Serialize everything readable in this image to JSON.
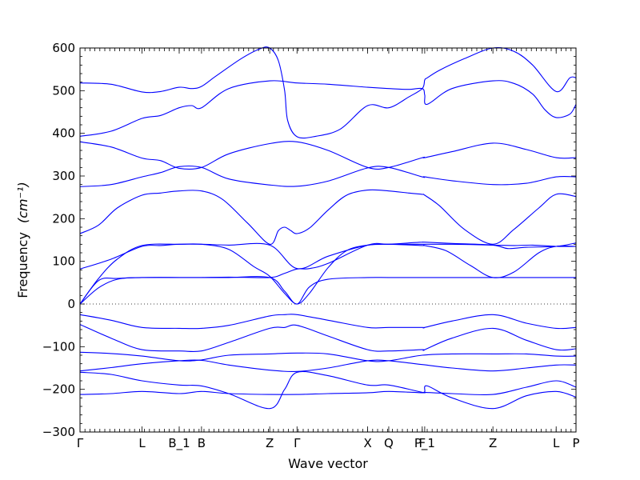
{
  "chart_data": {
    "type": "line",
    "title": "",
    "xlabel": "Wave vector",
    "ylabel": "Frequency",
    "ylabel_unit": "(cm⁻¹)",
    "ylim": [
      -300,
      600
    ],
    "yticks": [
      -300,
      -200,
      -100,
      0,
      100,
      200,
      300,
      400,
      500,
      600
    ],
    "xlim": [
      0,
      8.0
    ],
    "grid": false,
    "legend": "none",
    "colors": {
      "bands": "#0000ff",
      "zero_line": "#000000"
    },
    "high_symmetry_points": [
      {
        "label": "Γ",
        "x": 0.0
      },
      {
        "label": "L",
        "x": 1.0
      },
      {
        "label": "B_1",
        "x": 1.6
      },
      {
        "label": "B",
        "x": 1.96
      },
      {
        "label": "Z",
        "x": 3.06
      },
      {
        "label": "Γ",
        "x": 3.5
      },
      {
        "label": "X",
        "x": 4.64
      },
      {
        "label": "Q",
        "x": 4.98
      },
      {
        "label": "F",
        "x": 5.52
      },
      {
        "label": "P_1",
        "x": 5.56
      },
      {
        "label": "Z",
        "x": 6.66
      },
      {
        "label": "L",
        "x": 7.68
      },
      {
        "label": "P",
        "x": 8.0
      }
    ],
    "series": [
      {
        "x": [
          0,
          0.5,
          1.0,
          1.3,
          1.6,
          1.8,
          1.96,
          2.2,
          2.6,
          2.9,
          3.06,
          3.2,
          3.3,
          3.35,
          3.5,
          3.8,
          4.2,
          4.64,
          4.98,
          5.3,
          5.52,
          5.56,
          5.6,
          5.8,
          6.2,
          6.66,
          7.0,
          7.3,
          7.68,
          7.9,
          8.0
        ],
        "y": [
          518,
          515,
          497,
          498,
          508,
          505,
          510,
          535,
          575,
          598,
          600,
          570,
          500,
          430,
          392,
          393,
          410,
          465,
          460,
          485,
          505,
          525,
          530,
          548,
          575,
          600,
          592,
          560,
          498,
          530,
          530
        ]
      },
      {
        "x": [
          0,
          0.5,
          1.0,
          1.3,
          1.6,
          1.8,
          1.96,
          2.4,
          3.06,
          3.5,
          4.0,
          4.64,
          4.98,
          5.3,
          5.52,
          5.56,
          5.6,
          6.0,
          6.66,
          7.0,
          7.3,
          7.5,
          7.68,
          7.9,
          8.0
        ],
        "y": [
          393,
          405,
          435,
          442,
          460,
          465,
          460,
          505,
          523,
          518,
          515,
          508,
          505,
          503,
          505,
          490,
          468,
          505,
          523,
          517,
          492,
          455,
          437,
          445,
          468
        ]
      },
      {
        "x": [
          0,
          0.5,
          1.0,
          1.3,
          1.6,
          1.96,
          2.4,
          3.06,
          3.5,
          4.0,
          4.64,
          4.98,
          5.52,
          5.56,
          6.0,
          6.66,
          7.2,
          7.68,
          8.0
        ],
        "y": [
          380,
          368,
          342,
          336,
          318,
          320,
          352,
          376,
          380,
          360,
          320,
          320,
          343,
          343,
          357,
          377,
          362,
          343,
          343
        ]
      },
      {
        "x": [
          0,
          0.5,
          1.0,
          1.3,
          1.6,
          1.96,
          2.4,
          3.06,
          3.5,
          4.0,
          4.64,
          4.98,
          5.52,
          5.56,
          6.0,
          6.66,
          7.2,
          7.68,
          8.0
        ],
        "y": [
          275,
          280,
          298,
          308,
          322,
          320,
          293,
          279,
          276,
          288,
          319,
          320,
          298,
          298,
          289,
          280,
          283,
          298,
          298
        ]
      },
      {
        "x": [
          0,
          0.3,
          0.6,
          1.0,
          1.3,
          1.6,
          1.96,
          2.3,
          2.7,
          3.06,
          3.2,
          3.3,
          3.4,
          3.5,
          3.7,
          4.0,
          4.3,
          4.64,
          4.98,
          5.3,
          5.52,
          5.56,
          5.8,
          6.2,
          6.66,
          7.0,
          7.4,
          7.68,
          8.0
        ],
        "y": [
          165,
          185,
          225,
          255,
          260,
          265,
          265,
          245,
          190,
          140,
          172,
          180,
          172,
          165,
          178,
          220,
          255,
          267,
          265,
          260,
          257,
          255,
          230,
          175,
          140,
          175,
          225,
          257,
          252
        ]
      },
      {
        "x": [
          0,
          0.5,
          1.0,
          1.3,
          1.6,
          1.96,
          2.4,
          3.06,
          3.5,
          4.0,
          4.64,
          4.98,
          5.3,
          5.52,
          5.56,
          6.0,
          6.66,
          6.9,
          7.2,
          7.68,
          8.0
        ],
        "y": [
          82,
          105,
          135,
          137,
          140,
          140,
          138,
          138,
          83,
          112,
          138,
          140,
          143,
          145,
          145,
          142,
          138,
          130,
          133,
          135,
          143
        ]
      },
      {
        "x": [
          0,
          0.3,
          0.6,
          1.0,
          1.6,
          1.96,
          2.4,
          2.8,
          3.06,
          3.3,
          3.5,
          3.7,
          4.0,
          4.3,
          4.64,
          4.98,
          5.52,
          5.56,
          5.9,
          6.3,
          6.66,
          7.0,
          7.4,
          7.68,
          8.0
        ],
        "y": [
          0,
          60,
          105,
          137,
          140,
          140,
          128,
          88,
          65,
          25,
          0,
          25,
          85,
          125,
          138,
          140,
          137,
          137,
          125,
          90,
          62,
          75,
          120,
          135,
          135
        ]
      },
      {
        "x": [
          0,
          0.3,
          0.6,
          1.0,
          1.6,
          1.96,
          2.4,
          3.06,
          3.3,
          3.5,
          3.7,
          4.0,
          4.64,
          4.98,
          5.52,
          6.0,
          6.66,
          7.2,
          7.68,
          8.0
        ],
        "y": [
          0,
          55,
          60,
          62,
          62,
          62,
          62,
          62,
          30,
          0,
          40,
          58,
          62,
          62,
          62,
          62,
          62,
          62,
          62,
          62
        ]
      },
      {
        "x": [
          0,
          0.3,
          0.6,
          1.0,
          1.6,
          1.96,
          2.4,
          3.06,
          3.3,
          3.5,
          3.7,
          4.0,
          4.64,
          4.98,
          5.52,
          6.0,
          6.66,
          7.0,
          7.3,
          7.68,
          8.0
        ],
        "y": [
          0,
          38,
          58,
          62,
          62,
          62,
          63,
          62,
          72,
          82,
          83,
          95,
          138,
          140,
          140,
          140,
          138,
          137,
          138,
          135,
          135
        ]
      },
      {
        "x": [
          0,
          0.5,
          1.0,
          1.6,
          1.96,
          2.4,
          3.06,
          3.3,
          3.5,
          4.0,
          4.64,
          4.98,
          5.52,
          5.56,
          6.0,
          6.66,
          7.2,
          7.68,
          8.0
        ],
        "y": [
          -25,
          -38,
          -55,
          -57,
          -57,
          -50,
          -28,
          -25,
          -25,
          -38,
          -55,
          -55,
          -55,
          -55,
          -40,
          -25,
          -45,
          -57,
          -55
        ]
      },
      {
        "x": [
          0,
          0.5,
          1.0,
          1.6,
          1.96,
          2.4,
          3.06,
          3.3,
          3.5,
          4.0,
          4.64,
          4.98,
          5.52,
          5.56,
          6.0,
          6.66,
          7.2,
          7.68,
          8.0
        ],
        "y": [
          -48,
          -80,
          -107,
          -110,
          -110,
          -90,
          -57,
          -55,
          -50,
          -75,
          -107,
          -110,
          -107,
          -107,
          -80,
          -57,
          -85,
          -107,
          -105
        ]
      },
      {
        "x": [
          0,
          0.5,
          1.0,
          1.6,
          1.96,
          2.4,
          3.06,
          3.5,
          4.0,
          4.64,
          4.98,
          5.52,
          6.0,
          6.66,
          7.2,
          7.68,
          8.0
        ],
        "y": [
          -113,
          -116,
          -122,
          -133,
          -131,
          -120,
          -117,
          -115,
          -117,
          -133,
          -133,
          -120,
          -117,
          -117,
          -117,
          -122,
          -122
        ]
      },
      {
        "x": [
          0,
          0.5,
          1.0,
          1.6,
          1.96,
          2.4,
          3.06,
          3.5,
          4.0,
          4.64,
          4.98,
          5.52,
          6.0,
          6.66,
          7.2,
          7.68,
          8.0
        ],
        "y": [
          -157,
          -149,
          -140,
          -133,
          -132,
          -143,
          -155,
          -158,
          -150,
          -133,
          -133,
          -142,
          -150,
          -157,
          -150,
          -143,
          -143
        ]
      },
      {
        "x": [
          0,
          0.5,
          1.0,
          1.6,
          1.96,
          2.4,
          3.06,
          3.3,
          3.5,
          4.0,
          4.64,
          4.98,
          5.52,
          5.56,
          6.0,
          6.66,
          7.2,
          7.68,
          8.0
        ],
        "y": [
          -160,
          -165,
          -180,
          -190,
          -192,
          -210,
          -245,
          -200,
          -160,
          -168,
          -190,
          -190,
          -207,
          -207,
          -210,
          -212,
          -195,
          -180,
          -195
        ]
      },
      {
        "x": [
          0,
          0.5,
          1.0,
          1.6,
          1.96,
          2.4,
          3.06,
          3.5,
          4.0,
          4.64,
          4.98,
          5.52,
          5.56,
          5.6,
          6.0,
          6.66,
          7.2,
          7.68,
          8.0
        ],
        "y": [
          -212,
          -210,
          -205,
          -210,
          -205,
          -210,
          -212,
          -212,
          -210,
          -208,
          -205,
          -208,
          -205,
          -192,
          -220,
          -245,
          -215,
          -205,
          -218
        ]
      }
    ]
  }
}
